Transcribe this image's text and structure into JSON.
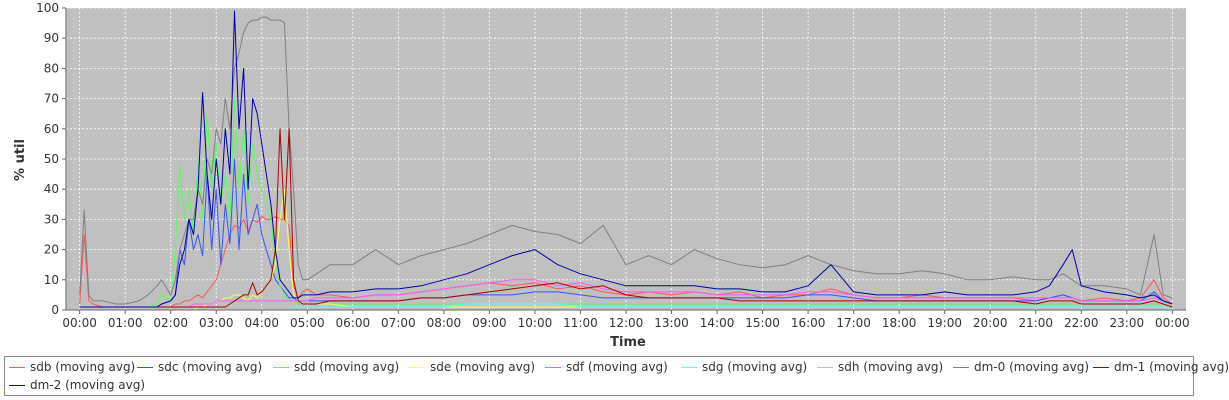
{
  "chart_data": {
    "type": "line",
    "title": "",
    "xlabel": "Time",
    "ylabel": "% util",
    "ylim": [
      0,
      100
    ],
    "yticks": [
      0,
      10,
      20,
      30,
      40,
      50,
      60,
      70,
      80,
      90,
      100
    ],
    "xticks": [
      "00:00",
      "01:00",
      "02:00",
      "03:00",
      "04:00",
      "05:00",
      "06:00",
      "07:00",
      "08:00",
      "09:00",
      "10:00",
      "11:00",
      "12:00",
      "13:00",
      "14:00",
      "15:00",
      "16:00",
      "17:00",
      "18:00",
      "19:00",
      "20:00",
      "21:00",
      "22:00",
      "23:00",
      "00:00"
    ],
    "x_hours": [
      0,
      0.1,
      0.2,
      0.3,
      0.5,
      0.8,
      1.0,
      1.3,
      1.5,
      1.7,
      1.8,
      2.0,
      2.1,
      2.2,
      2.3,
      2.4,
      2.5,
      2.6,
      2.7,
      2.8,
      2.9,
      3.0,
      3.1,
      3.2,
      3.3,
      3.4,
      3.5,
      3.6,
      3.7,
      3.8,
      3.9,
      4.0,
      4.1,
      4.2,
      4.3,
      4.4,
      4.5,
      4.6,
      4.7,
      4.8,
      4.9,
      5.0,
      5.2,
      5.5,
      6.0,
      6.5,
      7.0,
      7.5,
      8.0,
      8.5,
      9.0,
      9.5,
      10.0,
      10.5,
      11.0,
      11.5,
      12.0,
      12.5,
      13.0,
      13.5,
      14.0,
      14.5,
      15.0,
      15.5,
      16.0,
      16.5,
      17.0,
      17.5,
      18.0,
      18.5,
      19.0,
      19.5,
      20.0,
      20.5,
      21.0,
      21.3,
      21.6,
      21.8,
      22.0,
      22.5,
      23.0,
      23.3,
      23.6,
      23.8,
      24.0
    ],
    "legend_position": "bottom",
    "grid": true,
    "plot_background": "#c0c0c0",
    "series": [
      {
        "name": "sdb (moving avg)",
        "color": "#ff5555",
        "values": [
          2,
          25,
          3,
          2,
          1,
          1,
          1,
          1,
          1,
          1,
          1,
          1,
          2,
          2,
          3,
          3,
          4,
          5,
          4,
          6,
          8,
          10,
          15,
          20,
          25,
          28,
          27,
          30,
          26,
          30,
          29,
          31,
          30,
          30,
          31,
          30,
          30,
          28,
          8,
          4,
          6,
          7,
          5,
          5,
          4,
          5,
          5,
          6,
          7,
          8,
          9,
          8,
          9,
          7,
          8,
          6,
          5,
          6,
          5,
          6,
          5,
          6,
          4,
          5,
          5,
          7,
          5,
          4,
          4,
          5,
          4,
          4,
          4,
          4,
          3,
          4,
          5,
          4,
          3,
          4,
          3,
          4,
          10,
          4,
          2
        ]
      },
      {
        "name": "sdc (moving avg)",
        "color": "#3355ff",
        "values": [
          1,
          1,
          1,
          1,
          1,
          1,
          1,
          1,
          1,
          1,
          2,
          3,
          5,
          20,
          15,
          30,
          20,
          25,
          18,
          45,
          20,
          40,
          15,
          35,
          22,
          50,
          20,
          45,
          25,
          30,
          35,
          25,
          20,
          15,
          10,
          8,
          6,
          4,
          4,
          3,
          3,
          3,
          3,
          3,
          3,
          3,
          3,
          4,
          4,
          5,
          5,
          5,
          6,
          6,
          5,
          4,
          4,
          4,
          4,
          4,
          4,
          4,
          4,
          4,
          5,
          5,
          4,
          3,
          3,
          3,
          3,
          3,
          3,
          3,
          3,
          4,
          5,
          4,
          3,
          3,
          3,
          3,
          6,
          3,
          2
        ]
      },
      {
        "name": "sdd (moving avg)",
        "color": "#55ff55",
        "values": [
          1,
          1,
          1,
          1,
          1,
          1,
          1,
          1,
          1,
          2,
          5,
          3,
          20,
          48,
          30,
          40,
          25,
          50,
          30,
          65,
          40,
          55,
          35,
          45,
          30,
          70,
          40,
          60,
          35,
          55,
          45,
          40,
          35,
          30,
          15,
          8,
          5,
          3,
          3,
          2,
          2,
          2,
          2,
          2,
          2,
          2,
          2,
          2,
          2,
          2,
          2,
          2,
          2,
          2,
          2,
          2,
          2,
          2,
          2,
          2,
          2,
          2,
          2,
          2,
          2,
          2,
          2,
          2,
          2,
          2,
          2,
          2,
          2,
          2,
          2,
          2,
          2,
          2,
          2,
          2,
          2,
          2,
          2,
          2,
          1
        ]
      },
      {
        "name": "sde (moving avg)",
        "color": "#ffff55",
        "values": [
          0,
          0,
          0,
          0,
          0,
          0,
          0,
          0,
          0,
          0,
          0,
          0,
          0,
          0,
          0,
          0,
          0,
          1,
          1,
          2,
          2,
          3,
          3,
          4,
          4,
          5,
          5,
          4,
          3,
          5,
          4,
          6,
          8,
          10,
          15,
          30,
          40,
          20,
          5,
          3,
          2,
          2,
          2,
          2,
          1,
          1,
          1,
          1,
          1,
          1,
          1,
          1,
          1,
          1,
          1,
          1,
          1,
          1,
          1,
          1,
          1,
          1,
          1,
          1,
          1,
          1,
          1,
          1,
          1,
          1,
          1,
          1,
          1,
          1,
          1,
          1,
          1,
          1,
          1,
          1,
          1,
          1,
          1,
          1,
          0
        ]
      },
      {
        "name": "sdf (moving avg)",
        "color": "#ff55ff",
        "values": [
          1,
          1,
          1,
          1,
          1,
          1,
          1,
          1,
          1,
          1,
          1,
          1,
          1,
          1,
          1,
          1,
          2,
          2,
          2,
          2,
          2,
          3,
          3,
          3,
          3,
          3,
          3,
          3,
          3,
          3,
          3,
          3,
          3,
          3,
          3,
          3,
          3,
          3,
          3,
          3,
          3,
          3,
          4,
          4,
          4,
          5,
          5,
          6,
          7,
          8,
          9,
          10,
          10,
          8,
          9,
          7,
          6,
          6,
          6,
          6,
          5,
          5,
          5,
          5,
          6,
          6,
          5,
          4,
          4,
          4,
          4,
          4,
          4,
          4,
          4,
          4,
          4,
          4,
          3,
          3,
          3,
          3,
          4,
          3,
          2
        ]
      },
      {
        "name": "sdg (moving avg)",
        "color": "#55ffff",
        "values": [
          0,
          0,
          0,
          0,
          0,
          0,
          0,
          0,
          0,
          0,
          0,
          0,
          0,
          0,
          0,
          0,
          0,
          0,
          0,
          0,
          0,
          0,
          0,
          0,
          0,
          0,
          0,
          0,
          0,
          0,
          0,
          0,
          0,
          0,
          0,
          0,
          0,
          0,
          1,
          1,
          1,
          1,
          1,
          1,
          1,
          1,
          1,
          1,
          1,
          2,
          2,
          2,
          2,
          2,
          1,
          1,
          1,
          1,
          1,
          1,
          1,
          1,
          1,
          1,
          1,
          1,
          1,
          1,
          1,
          1,
          1,
          1,
          1,
          1,
          1,
          1,
          1,
          1,
          1,
          1,
          1,
          1,
          1,
          1,
          0
        ]
      },
      {
        "name": "sdh (moving avg)",
        "color": "#ffaaaa",
        "values": [
          0,
          0,
          0,
          0,
          0,
          0,
          0,
          0,
          0,
          0,
          0,
          0,
          0,
          0,
          0,
          0,
          0,
          0,
          0,
          0,
          0,
          0,
          0,
          0,
          0,
          0,
          0,
          0,
          0,
          0,
          0,
          0,
          0,
          0,
          0,
          0,
          0,
          0,
          0,
          0,
          0,
          0,
          0,
          0,
          0,
          0,
          0,
          0,
          0,
          0,
          0,
          0,
          0,
          0,
          0,
          0,
          0,
          0,
          0,
          0,
          0,
          0,
          0,
          0,
          0,
          0,
          0,
          0,
          0,
          0,
          0,
          0,
          0,
          0,
          0,
          0,
          0,
          0,
          0,
          0,
          0,
          0,
          0,
          0,
          0
        ]
      },
      {
        "name": "dm-0 (moving avg)",
        "color": "#808080",
        "values": [
          5,
          33,
          5,
          3,
          3,
          2,
          2,
          3,
          5,
          8,
          10,
          5,
          10,
          20,
          25,
          30,
          30,
          40,
          35,
          50,
          45,
          60,
          55,
          70,
          60,
          80,
          85,
          92,
          95,
          96,
          96,
          97,
          97,
          96,
          96,
          96,
          95,
          60,
          40,
          15,
          10,
          10,
          12,
          15,
          15,
          20,
          15,
          18,
          20,
          22,
          25,
          28,
          26,
          25,
          22,
          28,
          15,
          18,
          15,
          20,
          17,
          15,
          14,
          15,
          18,
          15,
          13,
          12,
          12,
          13,
          12,
          10,
          10,
          11,
          10,
          10,
          12,
          10,
          8,
          8,
          7,
          5,
          25,
          5,
          4
        ]
      },
      {
        "name": "dm-1 (moving avg)",
        "color": "#aa0000",
        "values": [
          1,
          1,
          1,
          1,
          1,
          1,
          1,
          1,
          1,
          1,
          1,
          1,
          1,
          1,
          1,
          1,
          1,
          1,
          1,
          1,
          1,
          1,
          1,
          1,
          2,
          3,
          4,
          5,
          5,
          9,
          5,
          6,
          8,
          10,
          20,
          60,
          30,
          60,
          10,
          3,
          2,
          2,
          2,
          3,
          3,
          3,
          3,
          4,
          4,
          5,
          6,
          7,
          8,
          9,
          7,
          8,
          5,
          4,
          4,
          4,
          4,
          3,
          3,
          3,
          3,
          3,
          3,
          3,
          3,
          3,
          3,
          3,
          3,
          3,
          2,
          3,
          3,
          3,
          2,
          2,
          2,
          2,
          3,
          2,
          1
        ]
      },
      {
        "name": "dm-2 (moving avg)",
        "color": "#0000aa",
        "values": [
          1,
          1,
          1,
          1,
          1,
          1,
          1,
          1,
          1,
          1,
          2,
          3,
          5,
          15,
          20,
          30,
          25,
          40,
          72,
          45,
          30,
          50,
          35,
          60,
          45,
          99,
          60,
          80,
          40,
          70,
          65,
          55,
          45,
          35,
          20,
          10,
          8,
          6,
          4,
          4,
          5,
          5,
          5,
          6,
          6,
          7,
          7,
          8,
          10,
          12,
          15,
          18,
          20,
          15,
          12,
          10,
          8,
          8,
          8,
          8,
          7,
          7,
          6,
          6,
          8,
          15,
          6,
          5,
          5,
          5,
          6,
          5,
          5,
          5,
          6,
          8,
          15,
          20,
          8,
          6,
          5,
          4,
          5,
          3,
          2
        ]
      }
    ]
  }
}
